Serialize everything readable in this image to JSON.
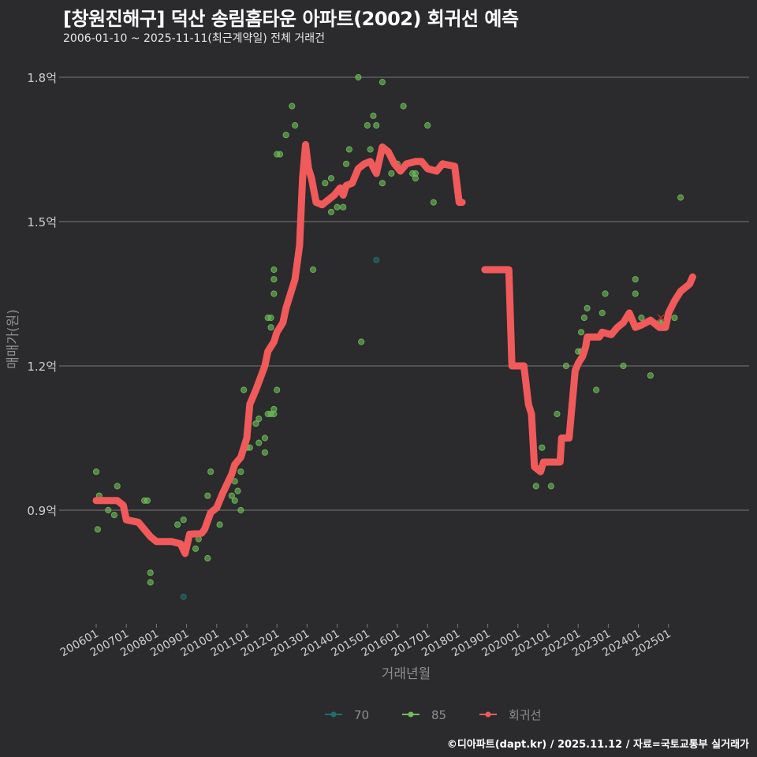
{
  "header": {
    "title": "[창원진해구] 덕산 송림홈타운 아파트(2002) 회귀선 예측",
    "subtitle": "2006-01-10 ~ 2025-11-11(최근계약일) 전체 거래건"
  },
  "footer": {
    "credit": "©디아파트(dapt.kr) / 2025.11.12 / 자료=국토교통부 실거래가"
  },
  "colors": {
    "background": "#2b2a2c",
    "grid": "#7a7a7a",
    "type70": "#1f6f6a",
    "type85": "#6fbf5a",
    "regression": "#f05a5a",
    "text": "#cfcfcf"
  },
  "chart_data": {
    "type": "scatter",
    "title": "[창원진해구] 덕산 송림홈타운 아파트(2002) 회귀선 예측",
    "subtitle": "2006-01-10 ~ 2025-11-11(최근계약일) 전체 거래건",
    "xlabel": "거래년월",
    "ylabel": "매매가(원)",
    "x_ticks": [
      "200601",
      "200701",
      "200801",
      "200901",
      "201001",
      "201101",
      "201201",
      "201301",
      "201401",
      "201501",
      "201601",
      "201701",
      "201801",
      "201901",
      "202001",
      "202101",
      "202201",
      "202301",
      "202401",
      "202501"
    ],
    "y_ticks": [
      {
        "value": 0.9,
        "label": "0.9억"
      },
      {
        "value": 1.2,
        "label": "1.2억"
      },
      {
        "value": 1.5,
        "label": "1.5억"
      },
      {
        "value": 1.8,
        "label": "1.8억"
      }
    ],
    "ylim": [
      0.67,
      1.85
    ],
    "grid": "horizontal",
    "legend": {
      "position": "bottom",
      "entries": [
        "70",
        "85",
        "회귀선"
      ]
    },
    "series": [
      {
        "name": "70",
        "kind": "points",
        "points": [
          [
            2008.9,
            0.72
          ],
          [
            2015.3,
            1.42
          ]
        ]
      },
      {
        "name": "85",
        "kind": "points",
        "points": [
          [
            2006.0,
            0.98
          ],
          [
            2006.1,
            0.93
          ],
          [
            2006.05,
            0.86
          ],
          [
            2006.4,
            0.9
          ],
          [
            2006.6,
            0.89
          ],
          [
            2006.7,
            0.95
          ],
          [
            2007.6,
            0.92
          ],
          [
            2007.7,
            0.92
          ],
          [
            2007.8,
            0.77
          ],
          [
            2007.8,
            0.75
          ],
          [
            2008.7,
            0.87
          ],
          [
            2008.9,
            0.88
          ],
          [
            2009.3,
            0.82
          ],
          [
            2009.4,
            0.84
          ],
          [
            2009.7,
            0.8
          ],
          [
            2009.7,
            0.93
          ],
          [
            2009.8,
            0.98
          ],
          [
            2010.1,
            0.87
          ],
          [
            2010.5,
            0.93
          ],
          [
            2010.6,
            0.92
          ],
          [
            2010.6,
            0.96
          ],
          [
            2010.7,
            0.94
          ],
          [
            2010.8,
            0.98
          ],
          [
            2010.8,
            0.9
          ],
          [
            2010.9,
            1.15
          ],
          [
            2011.0,
            1.03
          ],
          [
            2011.1,
            1.03
          ],
          [
            2011.3,
            1.08
          ],
          [
            2011.4,
            1.09
          ],
          [
            2011.4,
            1.04
          ],
          [
            2011.6,
            1.05
          ],
          [
            2011.6,
            1.02
          ],
          [
            2011.7,
            1.1
          ],
          [
            2011.8,
            1.1
          ],
          [
            2011.9,
            1.11
          ],
          [
            2011.9,
            1.1
          ],
          [
            2012.0,
            1.15
          ],
          [
            2011.7,
            1.3
          ],
          [
            2011.8,
            1.3
          ],
          [
            2011.8,
            1.28
          ],
          [
            2011.9,
            1.35
          ],
          [
            2011.9,
            1.38
          ],
          [
            2011.9,
            1.4
          ],
          [
            2012.0,
            1.64
          ],
          [
            2012.1,
            1.64
          ],
          [
            2012.3,
            1.68
          ],
          [
            2012.5,
            1.74
          ],
          [
            2012.6,
            1.7
          ],
          [
            2013.2,
            1.4
          ],
          [
            2013.6,
            1.58
          ],
          [
            2013.8,
            1.52
          ],
          [
            2013.8,
            1.59
          ],
          [
            2014.0,
            1.53
          ],
          [
            2014.2,
            1.53
          ],
          [
            2014.3,
            1.62
          ],
          [
            2014.4,
            1.65
          ],
          [
            2014.7,
            1.8
          ],
          [
            2014.8,
            1.25
          ],
          [
            2015.0,
            1.7
          ],
          [
            2015.1,
            1.65
          ],
          [
            2015.2,
            1.72
          ],
          [
            2015.3,
            1.7
          ],
          [
            2015.5,
            1.58
          ],
          [
            2015.5,
            1.79
          ],
          [
            2015.8,
            1.6
          ],
          [
            2016.0,
            1.62
          ],
          [
            2016.2,
            1.74
          ],
          [
            2016.5,
            1.6
          ],
          [
            2016.6,
            1.59
          ],
          [
            2016.6,
            1.6
          ],
          [
            2017.0,
            1.7
          ],
          [
            2017.2,
            1.54
          ],
          [
            2020.6,
            0.95
          ],
          [
            2020.8,
            1.03
          ],
          [
            2021.1,
            0.95
          ],
          [
            2021.3,
            1.1
          ],
          [
            2021.6,
            1.2
          ],
          [
            2022.0,
            1.23
          ],
          [
            2022.1,
            1.23
          ],
          [
            2022.1,
            1.27
          ],
          [
            2022.2,
            1.3
          ],
          [
            2022.3,
            1.32
          ],
          [
            2022.6,
            1.15
          ],
          [
            2022.8,
            1.31
          ],
          [
            2022.9,
            1.35
          ],
          [
            2023.5,
            1.2
          ],
          [
            2023.9,
            1.38
          ],
          [
            2023.9,
            1.35
          ],
          [
            2024.1,
            1.3
          ],
          [
            2024.4,
            1.18
          ],
          [
            2024.7,
            1.29
          ],
          [
            2024.8,
            1.29
          ],
          [
            2025.2,
            1.3
          ],
          [
            2025.4,
            1.55
          ]
        ]
      },
      {
        "name": "회귀선",
        "kind": "line",
        "segments": [
          [
            [
              2006.0,
              0.92
            ],
            [
              2006.7,
              0.92
            ],
            [
              2006.9,
              0.91
            ],
            [
              2007.0,
              0.88
            ],
            [
              2007.4,
              0.875
            ],
            [
              2007.6,
              0.86
            ],
            [
              2007.8,
              0.845
            ],
            [
              2008.0,
              0.835
            ],
            [
              2008.5,
              0.835
            ],
            [
              2008.8,
              0.83
            ],
            [
              2008.95,
              0.81
            ],
            [
              2009.1,
              0.85
            ],
            [
              2009.5,
              0.852
            ],
            [
              2009.6,
              0.86
            ],
            [
              2009.8,
              0.895
            ],
            [
              2010.0,
              0.905
            ],
            [
              2010.2,
              0.935
            ],
            [
              2010.5,
              0.975
            ],
            [
              2010.6,
              0.995
            ],
            [
              2010.8,
              1.01
            ],
            [
              2011.0,
              1.05
            ],
            [
              2011.1,
              1.12
            ],
            [
              2011.3,
              1.15
            ],
            [
              2011.6,
              1.2
            ],
            [
              2011.7,
              1.23
            ],
            [
              2011.9,
              1.25
            ],
            [
              2012.0,
              1.27
            ],
            [
              2012.2,
              1.29
            ],
            [
              2012.3,
              1.32
            ],
            [
              2012.4,
              1.34
            ],
            [
              2012.6,
              1.38
            ],
            [
              2012.75,
              1.45
            ],
            [
              2012.85,
              1.59
            ],
            [
              2012.95,
              1.66
            ],
            [
              2013.05,
              1.61
            ],
            [
              2013.15,
              1.59
            ],
            [
              2013.3,
              1.54
            ],
            [
              2013.5,
              1.535
            ],
            [
              2013.7,
              1.545
            ],
            [
              2013.9,
              1.555
            ],
            [
              2014.1,
              1.57
            ],
            [
              2014.2,
              1.555
            ],
            [
              2014.3,
              1.575
            ],
            [
              2014.5,
              1.58
            ],
            [
              2014.7,
              1.61
            ],
            [
              2014.9,
              1.62
            ],
            [
              2015.1,
              1.625
            ],
            [
              2015.3,
              1.6
            ],
            [
              2015.5,
              1.655
            ],
            [
              2015.7,
              1.645
            ],
            [
              2015.9,
              1.62
            ],
            [
              2016.1,
              1.605
            ],
            [
              2016.3,
              1.62
            ],
            [
              2016.6,
              1.625
            ],
            [
              2016.8,
              1.625
            ],
            [
              2017.0,
              1.61
            ],
            [
              2017.3,
              1.605
            ],
            [
              2017.5,
              1.62
            ],
            [
              2017.9,
              1.615
            ],
            [
              2018.05,
              1.54
            ],
            [
              2018.15,
              1.54
            ]
          ],
          [
            [
              2018.9,
              1.4
            ],
            [
              2019.7,
              1.4
            ],
            [
              2019.8,
              1.2
            ],
            [
              2020.2,
              1.2
            ],
            [
              2020.35,
              1.12
            ],
            [
              2020.45,
              1.1
            ],
            [
              2020.55,
              0.99
            ],
            [
              2020.75,
              0.98
            ],
            [
              2020.85,
              1.0
            ],
            [
              2021.4,
              1.0
            ],
            [
              2021.45,
              1.05
            ],
            [
              2021.7,
              1.05
            ],
            [
              2021.9,
              1.19
            ],
            [
              2022.0,
              1.205
            ],
            [
              2022.15,
              1.22
            ],
            [
              2022.25,
              1.24
            ],
            [
              2022.3,
              1.26
            ],
            [
              2022.7,
              1.26
            ],
            [
              2022.8,
              1.27
            ],
            [
              2023.1,
              1.265
            ],
            [
              2023.3,
              1.28
            ],
            [
              2023.5,
              1.29
            ],
            [
              2023.7,
              1.31
            ],
            [
              2023.9,
              1.28
            ],
            [
              2024.1,
              1.285
            ],
            [
              2024.4,
              1.295
            ],
            [
              2024.7,
              1.28
            ],
            [
              2024.9,
              1.28
            ],
            [
              2025.0,
              1.31
            ],
            [
              2025.2,
              1.335
            ],
            [
              2025.4,
              1.355
            ],
            [
              2025.7,
              1.37
            ],
            [
              2025.8,
              1.385
            ]
          ]
        ]
      }
    ]
  },
  "axes": {
    "x_label": "거래년월",
    "y_label": "매매가(원)",
    "x_ticks": [
      "200601",
      "200701",
      "200801",
      "200901",
      "201001",
      "201101",
      "201201",
      "201301",
      "201401",
      "201501",
      "201601",
      "201701",
      "201801",
      "201901",
      "202001",
      "202101",
      "202201",
      "202301",
      "202401",
      "202501"
    ],
    "y_ticks": [
      "0.9억",
      "1.2억",
      "1.5억",
      "1.8억"
    ]
  },
  "legend": {
    "items": [
      {
        "label": "70",
        "color": "#1f6f6a"
      },
      {
        "label": "85",
        "color": "#6fbf5a"
      },
      {
        "label": "회귀선",
        "color": "#f05a5a"
      }
    ]
  }
}
